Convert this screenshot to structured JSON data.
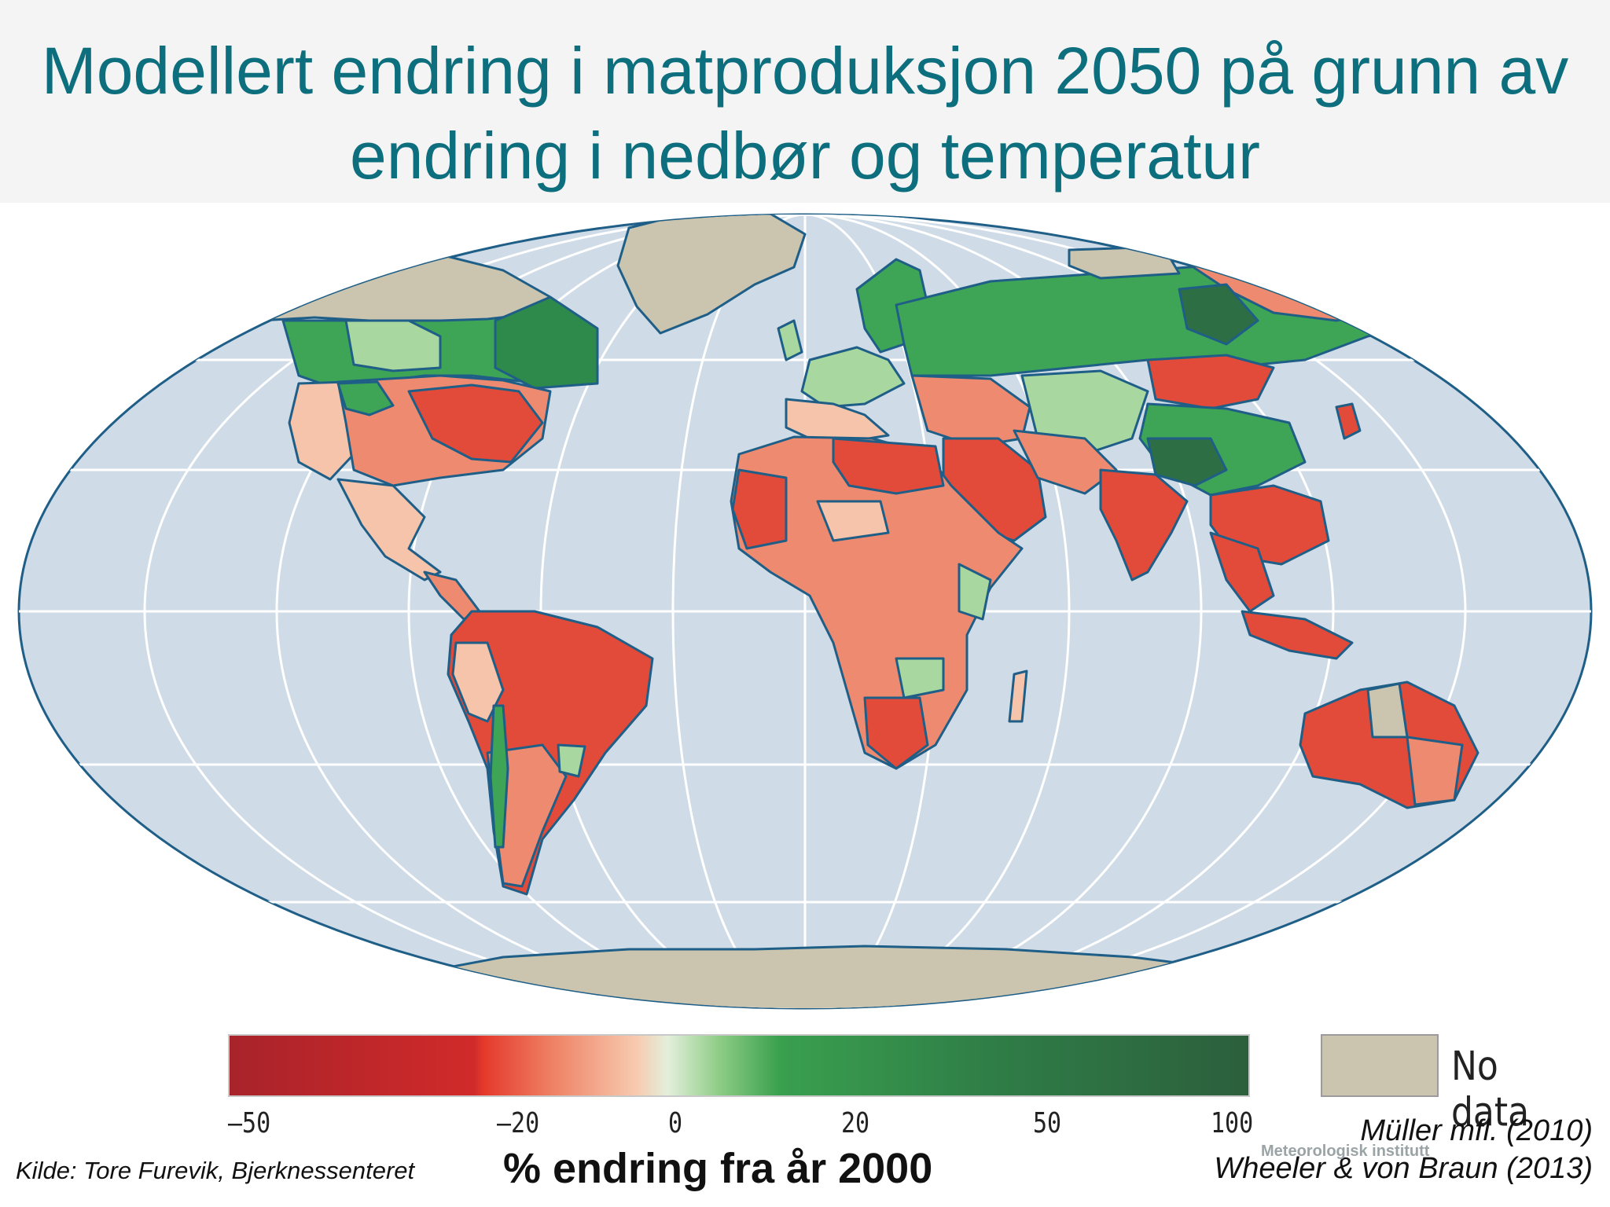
{
  "title": "Modellert endring i matproduksjon 2050 på grunn av endring i nedbør og temperatur",
  "colors": {
    "ocean": "#cfdbe6",
    "coast": "#1f5f87",
    "graticule": "#ffffff",
    "no_data": "#cbc5b0",
    "strong_loss": "#b52025",
    "loss": "#e24a3a",
    "moderate_loss": "#ee8a6f",
    "slight_loss": "#f6c3ab",
    "slight_gain": "#a9d7a0",
    "gain": "#3ea556",
    "strong_gain": "#2d6e45"
  },
  "legend": {
    "ticks": [
      "–50",
      "–20",
      "0",
      "20",
      "50",
      "100"
    ],
    "no_data_label": "No data",
    "axis_label": "% endring fra år 2000"
  },
  "source": "Kilde: Tore Furevik, Bjerknessenteret",
  "credits": [
    "Müller mfl. (2010)",
    "Wheeler & von Braun (2013)"
  ],
  "watermark": "Meteorologisk institutt"
}
